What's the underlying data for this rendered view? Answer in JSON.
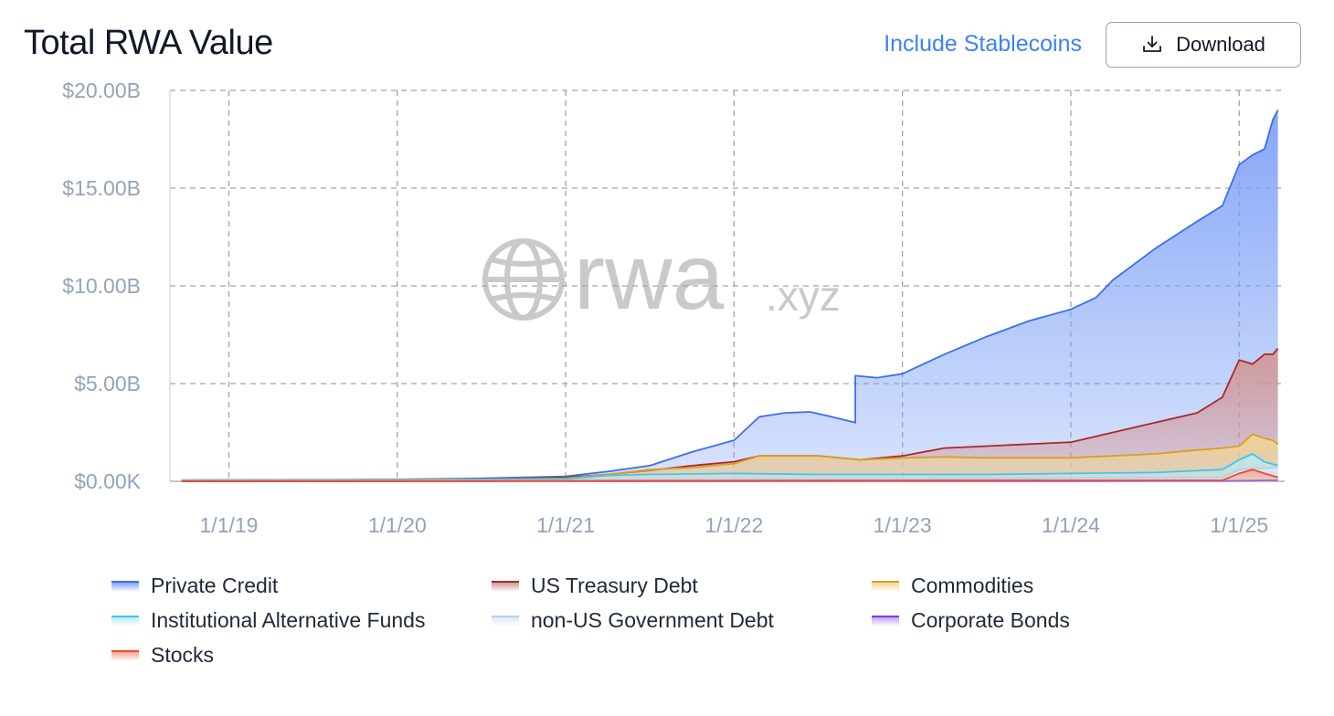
{
  "header": {
    "title": "Total RWA Value",
    "stablecoins_label": "Include Stablecoins",
    "download_label": "Download"
  },
  "watermark": {
    "main": "rwa",
    "suffix": ".xyz"
  },
  "legend": [
    {
      "label": "Private Credit",
      "color": "#3b6ff0",
      "fill": "#7fa2f7"
    },
    {
      "label": "US Treasury Debt",
      "color": "#a82a2a",
      "fill": "#d39696"
    },
    {
      "label": "Commodities",
      "color": "#d9a020",
      "fill": "#f2d691"
    },
    {
      "label": "Institutional Alternative Funds",
      "color": "#3ec8e6",
      "fill": "#b7ecf6"
    },
    {
      "label": "non-US Government Debt",
      "color": "#b9cdea",
      "fill": "#dde7f5"
    },
    {
      "label": "Corporate Bonds",
      "color": "#7c3aed",
      "fill": "#c4a3f7"
    },
    {
      "label": "Stocks",
      "color": "#f04a2a",
      "fill": "#f8a892"
    }
  ],
  "chart_data": {
    "type": "area",
    "title": "Total RWA Value",
    "x_unit": "year",
    "x_ticks": [
      {
        "x": 2019,
        "label": "1/1/19"
      },
      {
        "x": 2020,
        "label": "1/1/20"
      },
      {
        "x": 2021,
        "label": "1/1/21"
      },
      {
        "x": 2022,
        "label": "1/1/22"
      },
      {
        "x": 2023,
        "label": "1/1/23"
      },
      {
        "x": 2024,
        "label": "1/1/24"
      },
      {
        "x": 2025,
        "label": "1/1/25"
      }
    ],
    "y_ticks": [
      {
        "y": 0,
        "label": "$0.00K"
      },
      {
        "y": 5,
        "label": "$5.00B"
      },
      {
        "y": 10,
        "label": "$10.00B"
      },
      {
        "y": 15,
        "label": "$15.00B"
      },
      {
        "y": 20,
        "label": "$20.00B"
      }
    ],
    "xlim": [
      2018.65,
      2025.27
    ],
    "ylim": [
      0,
      20
    ],
    "y_unit": "billions USD (cumulative, stacked)",
    "grid": true,
    "stacked": true,
    "series": [
      {
        "name": "Private Credit",
        "color": "#3b6ff0",
        "points": [
          [
            2018.72,
            0.06
          ],
          [
            2019.5,
            0.08
          ],
          [
            2020.0,
            0.1
          ],
          [
            2020.5,
            0.15
          ],
          [
            2021.0,
            0.25
          ],
          [
            2021.25,
            0.5
          ],
          [
            2021.5,
            0.8
          ],
          [
            2021.75,
            1.5
          ],
          [
            2022.0,
            2.1
          ],
          [
            2022.15,
            3.3
          ],
          [
            2022.3,
            3.5
          ],
          [
            2022.45,
            3.55
          ],
          [
            2022.58,
            3.3
          ],
          [
            2022.72,
            3.0
          ],
          [
            2022.72,
            5.4
          ],
          [
            2022.85,
            5.3
          ],
          [
            2023.0,
            5.5
          ],
          [
            2023.25,
            6.5
          ],
          [
            2023.5,
            7.4
          ],
          [
            2023.75,
            8.2
          ],
          [
            2024.0,
            8.8
          ],
          [
            2024.15,
            9.4
          ],
          [
            2024.25,
            10.3
          ],
          [
            2024.5,
            11.9
          ],
          [
            2024.75,
            13.3
          ],
          [
            2024.9,
            14.1
          ],
          [
            2025.0,
            16.2
          ],
          [
            2025.08,
            16.7
          ],
          [
            2025.15,
            17.0
          ],
          [
            2025.2,
            18.5
          ],
          [
            2025.23,
            19.0
          ]
        ]
      },
      {
        "name": "US Treasury Debt",
        "color": "#a82a2a",
        "points": [
          [
            2018.72,
            0.05
          ],
          [
            2020.5,
            0.1
          ],
          [
            2021.0,
            0.2
          ],
          [
            2021.25,
            0.35
          ],
          [
            2021.5,
            0.55
          ],
          [
            2021.75,
            0.8
          ],
          [
            2022.0,
            1.0
          ],
          [
            2022.15,
            1.3
          ],
          [
            2022.5,
            1.3
          ],
          [
            2022.75,
            1.1
          ],
          [
            2023.0,
            1.3
          ],
          [
            2023.25,
            1.7
          ],
          [
            2023.5,
            1.8
          ],
          [
            2023.75,
            1.9
          ],
          [
            2024.0,
            2.0
          ],
          [
            2024.25,
            2.5
          ],
          [
            2024.5,
            3.0
          ],
          [
            2024.75,
            3.5
          ],
          [
            2024.9,
            4.3
          ],
          [
            2025.0,
            6.2
          ],
          [
            2025.08,
            6.0
          ],
          [
            2025.15,
            6.5
          ],
          [
            2025.2,
            6.5
          ],
          [
            2025.23,
            6.8
          ]
        ]
      },
      {
        "name": "Commodities",
        "color": "#d9a020",
        "points": [
          [
            2018.72,
            0.05
          ],
          [
            2020.5,
            0.1
          ],
          [
            2021.0,
            0.15
          ],
          [
            2021.25,
            0.35
          ],
          [
            2021.5,
            0.6
          ],
          [
            2021.75,
            0.7
          ],
          [
            2022.0,
            0.9
          ],
          [
            2022.15,
            1.3
          ],
          [
            2022.5,
            1.3
          ],
          [
            2022.75,
            1.1
          ],
          [
            2023.0,
            1.2
          ],
          [
            2023.25,
            1.25
          ],
          [
            2023.5,
            1.2
          ],
          [
            2023.75,
            1.2
          ],
          [
            2024.0,
            1.2
          ],
          [
            2024.25,
            1.3
          ],
          [
            2024.5,
            1.4
          ],
          [
            2024.75,
            1.6
          ],
          [
            2024.9,
            1.7
          ],
          [
            2025.0,
            1.8
          ],
          [
            2025.08,
            2.4
          ],
          [
            2025.15,
            2.2
          ],
          [
            2025.2,
            2.1
          ],
          [
            2025.23,
            1.9
          ]
        ]
      },
      {
        "name": "Institutional Alternative Funds",
        "color": "#3ec8e6",
        "points": [
          [
            2018.72,
            0.04
          ],
          [
            2020.5,
            0.08
          ],
          [
            2021.0,
            0.12
          ],
          [
            2021.25,
            0.3
          ],
          [
            2021.5,
            0.35
          ],
          [
            2022.0,
            0.4
          ],
          [
            2022.5,
            0.35
          ],
          [
            2023.0,
            0.35
          ],
          [
            2023.5,
            0.35
          ],
          [
            2024.0,
            0.4
          ],
          [
            2024.5,
            0.45
          ],
          [
            2024.9,
            0.6
          ],
          [
            2025.0,
            1.1
          ],
          [
            2025.08,
            1.4
          ],
          [
            2025.15,
            1.0
          ],
          [
            2025.23,
            0.8
          ]
        ]
      },
      {
        "name": "non-US Government Debt",
        "color": "#b9cdea",
        "points": [
          [
            2018.72,
            0.02
          ],
          [
            2021.0,
            0.05
          ],
          [
            2022.0,
            0.1
          ],
          [
            2023.0,
            0.12
          ],
          [
            2024.0,
            0.15
          ],
          [
            2024.9,
            0.2
          ],
          [
            2025.0,
            0.6
          ],
          [
            2025.23,
            0.7
          ]
        ]
      },
      {
        "name": "Corporate Bonds",
        "color": "#7c3aed",
        "points": [
          [
            2018.72,
            0.0
          ],
          [
            2024.9,
            0.02
          ],
          [
            2025.23,
            0.05
          ]
        ]
      },
      {
        "name": "Stocks",
        "color": "#f04a2a",
        "points": [
          [
            2018.72,
            0.0
          ],
          [
            2024.9,
            0.05
          ],
          [
            2025.0,
            0.4
          ],
          [
            2025.08,
            0.6
          ],
          [
            2025.15,
            0.4
          ],
          [
            2025.23,
            0.2
          ]
        ]
      }
    ]
  }
}
